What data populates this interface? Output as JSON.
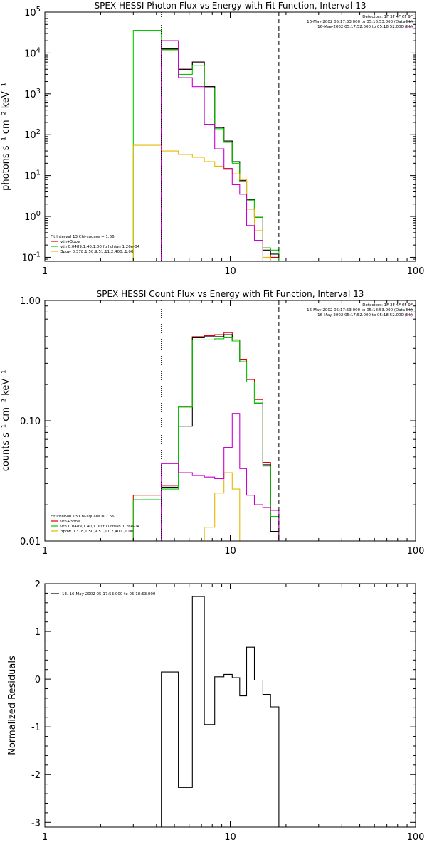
{
  "chart_data": [
    {
      "type": "line",
      "title": "SPEX HESSI Photon Flux vs Energy with Fit Function, Interval 13",
      "xlabel": "",
      "ylabel": "photons s⁻¹ cm⁻² keV⁻¹",
      "xscale": "log",
      "yscale": "log",
      "xlim": [
        1,
        100
      ],
      "ylim": [
        0.08,
        100000
      ],
      "xticks": [
        {
          "value": 1,
          "label": "1"
        },
        {
          "value": 10,
          "label": "10"
        },
        {
          "value": 100,
          "label": "100"
        }
      ],
      "yticks": [
        {
          "value": 0.1,
          "label": "10",
          "exp": "-1"
        },
        {
          "value": 1,
          "label": "10",
          "exp": "0"
        },
        {
          "value": 10,
          "label": "10",
          "exp": "1"
        },
        {
          "value": 100,
          "label": "10",
          "exp": "2"
        },
        {
          "value": 1000,
          "label": "10",
          "exp": "3"
        },
        {
          "value": 10000,
          "label": "10",
          "exp": "4"
        },
        {
          "value": 100000,
          "label": "10",
          "exp": "5"
        }
      ],
      "info_lines": [
        {
          "text": "Detectors: 1F 3F 4F 6F 9F",
          "color": "#000000"
        },
        {
          "text": "16-May-2002 05:17:53.000 to 05:18:53.000 (Data-Bk)",
          "color": "#000000"
        },
        {
          "text": "16-May-2002 05:17:52.000 to 05:18:52.000 (Bk)",
          "color": "#cc00cc"
        }
      ],
      "legend_position": "bottom-left",
      "legend_title": "Fit Interval 13   Chi-square = 1.66",
      "legend": [
        {
          "label": "vth+3pow",
          "color": "#dd0000"
        },
        {
          "label": "vth 0.0489,1.40,1.00  full chian 1.26e-04",
          "color": "#00cc00"
        },
        {
          "label": "3pow 0.378,1.50,9.51,11.2,400.,1.00",
          "color": "#e6b800"
        }
      ],
      "vlines": [
        {
          "x": 4.25,
          "style": "dotted",
          "color": "#000000"
        },
        {
          "x": 18.3,
          "style": "dashed",
          "color": "#000000"
        }
      ],
      "bin_edges": [
        3.0,
        4.25,
        5.25,
        6.25,
        7.25,
        8.25,
        9.25,
        10.25,
        11.25,
        12.25,
        13.5,
        15.0,
        16.5,
        18.3
      ],
      "series": [
        {
          "name": "vth+3pow",
          "color": "#dd0000",
          "values": [
            null,
            13000,
            4000,
            6000,
            1500,
            150,
            70,
            22,
            7.5,
            2.6,
            0.95,
            0.17,
            0.1
          ]
        },
        {
          "name": "data",
          "color": "#000000",
          "values": [
            null,
            12500,
            4000,
            6000,
            1500,
            150,
            70,
            22,
            7.5,
            2.6,
            0.95,
            0.15,
            0.12
          ]
        },
        {
          "name": "vth 0.0489,1.40,1.00",
          "color": "#00cc00",
          "values": [
            36000,
            12000,
            3000,
            5000,
            1400,
            140,
            65,
            20,
            7,
            2.5,
            0.95,
            0.17,
            0.15
          ]
        },
        {
          "name": "3pow 0.378,1.50,9.51,11.2,400.,1.00",
          "color": "#e6b800",
          "values": [
            55,
            40,
            33,
            28,
            22,
            17,
            14,
            11,
            8,
            1.5,
            0.45,
            0.1,
            0.06
          ]
        },
        {
          "name": "Bk",
          "color": "#cc00cc",
          "values": [
            null,
            20000,
            2500,
            1500,
            180,
            45,
            15,
            6,
            3.5,
            0.6,
            0.26,
            0.08,
            0.02
          ]
        }
      ]
    },
    {
      "type": "line",
      "title": "SPEX HESSI Count Flux vs Energy with Fit Function, Interval 13",
      "xlabel": "",
      "ylabel": "counts s⁻¹ cm⁻² keV⁻¹",
      "xscale": "log",
      "yscale": "log",
      "xlim": [
        1,
        100
      ],
      "ylim": [
        0.01,
        1.0
      ],
      "xticks": [
        {
          "value": 1,
          "label": "1"
        },
        {
          "value": 10,
          "label": "10"
        },
        {
          "value": 100,
          "label": "100"
        }
      ],
      "yticks": [
        {
          "value": 0.01,
          "label": "0.01",
          "exp": ""
        },
        {
          "value": 0.1,
          "label": "0.10",
          "exp": ""
        },
        {
          "value": 1.0,
          "label": "1.00",
          "exp": ""
        }
      ],
      "info_lines": [
        {
          "text": "Detectors: 1F 3F 4F 6F 9F",
          "color": "#000000"
        },
        {
          "text": "16-May-2002 05:17:53.000 to 05:18:53.000 (Data-Bk)",
          "color": "#000000"
        },
        {
          "text": "16-May-2002 05:17:52.000 to 05:18:52.000 (Bk)",
          "color": "#cc00cc"
        }
      ],
      "legend_position": "bottom-left",
      "legend_title": "Fit Interval 13   Chi-square = 1.66",
      "legend": [
        {
          "label": "vth+3pow",
          "color": "#dd0000"
        },
        {
          "label": "vth 0.0489,1.40,1.00  full chian 1.26e-04",
          "color": "#00cc00"
        },
        {
          "label": "3pow 0.378,1.50,9.51,11.2,400.,1.00",
          "color": "#e6b800"
        }
      ],
      "vlines": [
        {
          "x": 4.25,
          "style": "dotted",
          "color": "#000000"
        },
        {
          "x": 18.3,
          "style": "dashed",
          "color": "#000000"
        }
      ],
      "bin_edges": [
        3.0,
        4.25,
        5.25,
        6.25,
        7.25,
        8.25,
        9.25,
        10.25,
        11.25,
        12.25,
        13.5,
        15.0,
        16.5,
        18.3
      ],
      "series": [
        {
          "name": "vth+3pow",
          "color": "#dd0000",
          "values": [
            0.024,
            0.029,
            0.13,
            0.5,
            0.51,
            0.52,
            0.54,
            0.47,
            0.32,
            0.22,
            0.15,
            0.045,
            0.016
          ]
        },
        {
          "name": "data",
          "color": "#000000",
          "values": [
            null,
            0.028,
            0.09,
            0.49,
            0.5,
            0.5,
            0.52,
            0.46,
            0.31,
            0.21,
            0.14,
            0.043,
            0.012
          ]
        },
        {
          "name": "vth 0.0489,1.40,1.00",
          "color": "#00cc00",
          "values": [
            0.022,
            0.027,
            0.13,
            0.47,
            0.47,
            0.48,
            0.49,
            0.46,
            0.31,
            0.21,
            0.14,
            0.042,
            0.016
          ]
        },
        {
          "name": "3pow 0.378,1.50,9.51,11.2,400.,1.00",
          "color": "#e6b800",
          "values": [
            null,
            null,
            null,
            null,
            0.013,
            0.025,
            0.037,
            0.027,
            0.007,
            null,
            null,
            null,
            null
          ]
        },
        {
          "name": "Bk",
          "color": "#cc00cc",
          "values": [
            null,
            0.044,
            0.037,
            0.035,
            0.034,
            0.033,
            0.06,
            0.115,
            0.04,
            0.024,
            0.02,
            0.019,
            0.018
          ]
        }
      ]
    },
    {
      "type": "line",
      "title": "",
      "xlabel": "",
      "ylabel": "Normalized Residuals",
      "xscale": "log",
      "yscale": "linear",
      "xlim": [
        1,
        100
      ],
      "ylim": [
        -3.1,
        2.0
      ],
      "xticks": [
        {
          "value": 1,
          "label": "1"
        },
        {
          "value": 10,
          "label": "10"
        },
        {
          "value": 100,
          "label": "100"
        }
      ],
      "yticks": [
        {
          "value": 2,
          "label": "2",
          "exp": ""
        },
        {
          "value": 1,
          "label": "1",
          "exp": ""
        },
        {
          "value": 0,
          "label": "0",
          "exp": ""
        },
        {
          "value": -1,
          "label": "-1",
          "exp": ""
        },
        {
          "value": -2,
          "label": "-2",
          "exp": ""
        },
        {
          "value": -3,
          "label": "-3",
          "exp": ""
        }
      ],
      "info_lines": [],
      "legend_position": "top-left",
      "legend_title": "",
      "legend": [
        {
          "label": "13. 16-May-2002 05:17:53.000 to 05:18:53.000",
          "color": "#000000"
        }
      ],
      "vlines": [],
      "bin_edges": [
        4.25,
        5.25,
        6.25,
        7.25,
        8.25,
        9.25,
        10.25,
        11.25,
        12.25,
        13.5,
        15.0,
        16.5,
        18.3
      ],
      "series": [
        {
          "name": "13. 16-May-2002 05:17:53.000 to 05:18:53.000",
          "color": "#000000",
          "values": [
            0.15,
            -2.27,
            1.73,
            -0.95,
            0.05,
            0.1,
            0.03,
            -0.35,
            0.67,
            -0.02,
            -0.32,
            -0.58
          ]
        }
      ]
    }
  ]
}
